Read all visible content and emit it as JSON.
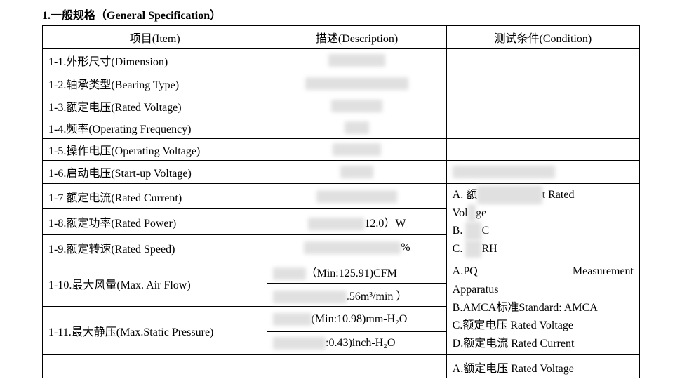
{
  "title": "1.一般规格（General Specification）",
  "headers": {
    "item": "项目(Item)",
    "description": "描述(Description)",
    "condition": "测试条件(Condition)"
  },
  "rows": {
    "r1": {
      "item": "1-1.外形尺寸(Dimension)",
      "redact": "XXXXXXX"
    },
    "r2": {
      "item": "1-2.轴承类型(Bearing Type)",
      "redact": "XXX XXX XXXXXX"
    },
    "r3": {
      "item": "1-3.额定电压(Rated Voltage)",
      "redact": "XXX XXX"
    },
    "r4": {
      "item": "1-4.频率(Operating Frequency)",
      "redact": "XXX"
    },
    "r5": {
      "item": "1-5.操作电压(Operating Voltage)",
      "redact": "XXXXXX"
    },
    "r6": {
      "item": "1-6.启动电压(Start-up Voltage)",
      "redact": "XXXX",
      "cond_redact": "2XXXXXXXXXXXX"
    },
    "r7": {
      "item": "1-7 额定电流(Rated Current)",
      "redact": "(XXXXXXXXX)"
    },
    "r8": {
      "item": "1-8.额定功率(Rated Power)",
      "redact": "XXXXXXX",
      "suffix": "12.0）W"
    },
    "r9": {
      "item": "1-9.额定转速(Rated Speed)",
      "redact": "XXXXXXXXXXXX",
      "suffix": "%"
    },
    "r10": {
      "item": "1-10.最大风量(Max. Air Flow)",
      "line1_redact": "XXXX",
      "line1_suffix": "（Min:125.91)CFM",
      "line2_redact": "3XXXX XXXX",
      "line2_suffix": ".56m³/min ）"
    },
    "r11": {
      "item": "1-11.最大静压(Max.Static Pressure)",
      "line1_redact": "1XXXX",
      "line1_suffix": "(Min:10.98)mm-H₂O",
      "line2_redact": "(XXXXXX",
      "line2_suffix": ":0.43)inch-H₂O"
    }
  },
  "cond_block1": {
    "a_prefix": "A. 额",
    "a_redact": "XXXXXXXX",
    "a_suffix": "t Rated",
    "vol_pre": "Vol",
    "vol_redact": "X",
    "vol_suf": "ge",
    "b_pre": "B. ",
    "b_redact": "XX",
    "b_suf": "C",
    "c_pre": "C. ",
    "c_redact": "XX",
    "c_suf": "RH"
  },
  "cond_block2": {
    "a": "A.PQ         Measurement Apparatus",
    "b": "B.AMCA标准Standard: AMCA",
    "c": "C.额定电压 Rated Voltage",
    "d": "D.额定电流 Rated Current"
  },
  "cond_block3": {
    "a": "A.额定电压 Rated Voltage"
  }
}
